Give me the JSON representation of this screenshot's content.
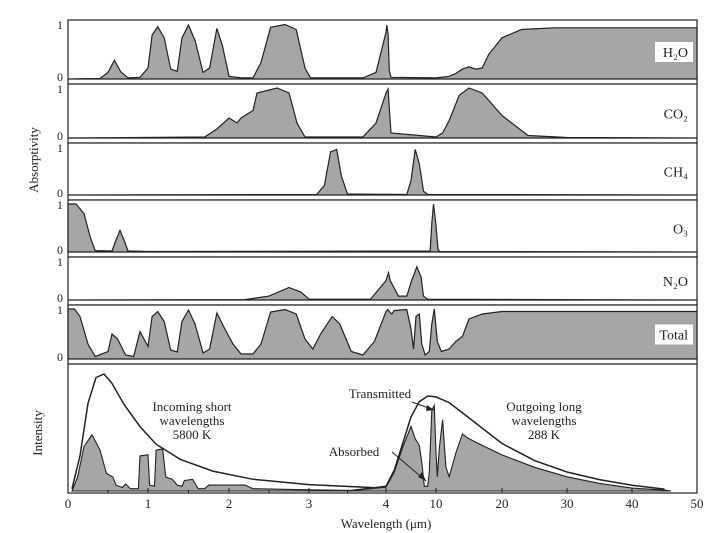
{
  "chart_data": {
    "type": "area",
    "xlabel": "Wavelength (μm)",
    "x_ticks": [
      "0",
      "1",
      "2",
      "3",
      "4",
      "10",
      "20",
      "30",
      "40",
      "50"
    ],
    "absorptivity_label": "Absorptivity",
    "intensity_label": "Intensity",
    "y_ticks": [
      "0",
      "1"
    ],
    "fill_color": "#a6a6a6",
    "grid": false,
    "panels": [
      {
        "name": "H₂O",
        "points": [
          [
            0,
            0
          ],
          [
            0.4,
            0.01
          ],
          [
            0.5,
            0.12
          ],
          [
            0.58,
            0.34
          ],
          [
            0.66,
            0.13
          ],
          [
            0.75,
            0.02
          ],
          [
            0.9,
            0.03
          ],
          [
            1.0,
            0.2
          ],
          [
            1.05,
            0.8
          ],
          [
            1.12,
            0.95
          ],
          [
            1.2,
            0.75
          ],
          [
            1.28,
            0.18
          ],
          [
            1.36,
            0.14
          ],
          [
            1.42,
            0.75
          ],
          [
            1.5,
            0.98
          ],
          [
            1.58,
            0.7
          ],
          [
            1.68,
            0.12
          ],
          [
            1.76,
            0.2
          ],
          [
            1.85,
            0.92
          ],
          [
            1.92,
            0.6
          ],
          [
            2.0,
            0.05
          ],
          [
            2.15,
            0.02
          ],
          [
            2.3,
            0.02
          ],
          [
            2.4,
            0.3
          ],
          [
            2.52,
            0.94
          ],
          [
            2.7,
            0.99
          ],
          [
            2.84,
            0.9
          ],
          [
            2.95,
            0.2
          ],
          [
            3.02,
            0.02
          ],
          [
            3.7,
            0.02
          ],
          [
            3.87,
            0.12
          ],
          [
            4.0,
            0.85
          ],
          [
            4.1,
            0.98
          ],
          [
            4.25,
            0.82
          ],
          [
            4.4,
            0.15
          ],
          [
            4.6,
            0.03
          ],
          [
            10,
            0.02
          ],
          [
            12,
            0.05
          ],
          [
            13,
            0.1
          ],
          [
            14,
            0.18
          ],
          [
            15,
            0.22
          ],
          [
            16,
            0.18
          ],
          [
            17,
            0.2
          ],
          [
            18,
            0.45
          ],
          [
            20,
            0.75
          ],
          [
            23,
            0.9
          ],
          [
            28,
            0.93
          ],
          [
            50,
            0.93
          ]
        ]
      },
      {
        "name": "CO₂",
        "points": [
          [
            0,
            0
          ],
          [
            1.7,
            0.02
          ],
          [
            1.85,
            0.18
          ],
          [
            2.0,
            0.4
          ],
          [
            2.1,
            0.3
          ],
          [
            2.15,
            0.4
          ],
          [
            2.3,
            0.55
          ],
          [
            2.35,
            0.9
          ],
          [
            2.6,
            1.0
          ],
          [
            2.75,
            0.9
          ],
          [
            2.85,
            0.3
          ],
          [
            2.95,
            0.02
          ],
          [
            3.7,
            0.02
          ],
          [
            3.87,
            0.3
          ],
          [
            4.05,
            0.92
          ],
          [
            4.25,
            0.98
          ],
          [
            4.4,
            0.6
          ],
          [
            4.6,
            0.1
          ],
          [
            10,
            0.02
          ],
          [
            11,
            0.1
          ],
          [
            12,
            0.35
          ],
          [
            13.5,
            0.85
          ],
          [
            15,
            1.0
          ],
          [
            17,
            0.9
          ],
          [
            20,
            0.45
          ],
          [
            24,
            0.05
          ],
          [
            30,
            0.01
          ],
          [
            50,
            0.0
          ]
        ]
      },
      {
        "name": "CH₄",
        "points": [
          [
            0,
            0
          ],
          [
            3.1,
            0.01
          ],
          [
            3.2,
            0.2
          ],
          [
            3.28,
            0.9
          ],
          [
            3.36,
            0.95
          ],
          [
            3.42,
            0.4
          ],
          [
            3.5,
            0.02
          ],
          [
            6.5,
            0.01
          ],
          [
            7,
            0.3
          ],
          [
            7.5,
            0.95
          ],
          [
            8,
            0.65
          ],
          [
            8.5,
            0.08
          ],
          [
            9,
            0.01
          ],
          [
            50,
            0.0
          ]
        ]
      },
      {
        "name": "O₃",
        "points": [
          [
            0,
            1.0
          ],
          [
            0.1,
            1.0
          ],
          [
            0.2,
            0.8
          ],
          [
            0.28,
            0.3
          ],
          [
            0.34,
            0.03
          ],
          [
            0.55,
            0.02
          ],
          [
            0.6,
            0.25
          ],
          [
            0.65,
            0.45
          ],
          [
            0.7,
            0.25
          ],
          [
            0.75,
            0.02
          ],
          [
            1.0,
            0.01
          ],
          [
            9.3,
            0.02
          ],
          [
            9.5,
            0.6
          ],
          [
            9.7,
            1.0
          ],
          [
            10.0,
            0.55
          ],
          [
            10.3,
            0.05
          ],
          [
            10.6,
            0.01
          ],
          [
            50,
            0.0
          ]
        ]
      },
      {
        "name": "N₂O",
        "points": [
          [
            0,
            0
          ],
          [
            2.2,
            0.01
          ],
          [
            2.5,
            0.1
          ],
          [
            2.75,
            0.32
          ],
          [
            2.9,
            0.2
          ],
          [
            3.0,
            0.02
          ],
          [
            3.8,
            0.02
          ],
          [
            4.0,
            0.5
          ],
          [
            4.3,
            0.7
          ],
          [
            4.5,
            0.5
          ],
          [
            5.5,
            0.1
          ],
          [
            6.5,
            0.1
          ],
          [
            7.0,
            0.45
          ],
          [
            7.7,
            0.85
          ],
          [
            8.2,
            0.6
          ],
          [
            8.5,
            0.1
          ],
          [
            9.0,
            0.02
          ],
          [
            50,
            0.0
          ]
        ]
      },
      {
        "name": "Total",
        "points": [
          [
            0,
            1.0
          ],
          [
            0.08,
            1.0
          ],
          [
            0.15,
            0.85
          ],
          [
            0.25,
            0.3
          ],
          [
            0.34,
            0.05
          ],
          [
            0.5,
            0.15
          ],
          [
            0.55,
            0.5
          ],
          [
            0.62,
            0.4
          ],
          [
            0.72,
            0.08
          ],
          [
            0.82,
            0.05
          ],
          [
            0.9,
            0.55
          ],
          [
            1.0,
            0.25
          ],
          [
            1.05,
            0.85
          ],
          [
            1.12,
            0.95
          ],
          [
            1.2,
            0.75
          ],
          [
            1.28,
            0.18
          ],
          [
            1.36,
            0.14
          ],
          [
            1.42,
            0.75
          ],
          [
            1.5,
            0.98
          ],
          [
            1.58,
            0.7
          ],
          [
            1.68,
            0.12
          ],
          [
            1.76,
            0.2
          ],
          [
            1.85,
            0.92
          ],
          [
            1.95,
            0.6
          ],
          [
            2.05,
            0.3
          ],
          [
            2.15,
            0.1
          ],
          [
            2.3,
            0.1
          ],
          [
            2.4,
            0.3
          ],
          [
            2.52,
            0.94
          ],
          [
            2.7,
            0.99
          ],
          [
            2.84,
            0.9
          ],
          [
            2.95,
            0.4
          ],
          [
            3.05,
            0.2
          ],
          [
            3.15,
            0.5
          ],
          [
            3.3,
            0.85
          ],
          [
            3.4,
            0.7
          ],
          [
            3.55,
            0.15
          ],
          [
            3.7,
            0.08
          ],
          [
            3.85,
            0.35
          ],
          [
            4.0,
            0.95
          ],
          [
            4.2,
            0.99
          ],
          [
            4.4,
            0.95
          ],
          [
            4.7,
            0.9
          ],
          [
            5.0,
            0.97
          ],
          [
            6.5,
            0.99
          ],
          [
            7.0,
            0.6
          ],
          [
            7.3,
            0.2
          ],
          [
            7.6,
            0.85
          ],
          [
            8.0,
            0.9
          ],
          [
            8.3,
            0.3
          ],
          [
            8.7,
            0.08
          ],
          [
            9.2,
            0.15
          ],
          [
            9.5,
            0.7
          ],
          [
            9.8,
            1.0
          ],
          [
            10.2,
            0.35
          ],
          [
            10.8,
            0.15
          ],
          [
            12,
            0.2
          ],
          [
            13,
            0.35
          ],
          [
            14,
            0.45
          ],
          [
            15,
            0.8
          ],
          [
            17,
            0.9
          ],
          [
            20,
            0.95
          ],
          [
            50,
            0.95
          ]
        ]
      }
    ],
    "blackbody_sun": [
      [
        0.05,
        0.02
      ],
      [
        0.15,
        0.3
      ],
      [
        0.25,
        0.75
      ],
      [
        0.35,
        0.97
      ],
      [
        0.45,
        1.0
      ],
      [
        0.55,
        0.92
      ],
      [
        0.7,
        0.74
      ],
      [
        0.9,
        0.55
      ],
      [
        1.1,
        0.4
      ],
      [
        1.4,
        0.27
      ],
      [
        1.8,
        0.17
      ],
      [
        2.3,
        0.1
      ],
      [
        3.0,
        0.055
      ],
      [
        3.8,
        0.03
      ],
      [
        4.0,
        0.02
      ]
    ],
    "incoming_fill": [
      [
        0.05,
        0
      ],
      [
        0.12,
        0.12
      ],
      [
        0.2,
        0.38
      ],
      [
        0.3,
        0.48
      ],
      [
        0.4,
        0.35
      ],
      [
        0.48,
        0.15
      ],
      [
        0.56,
        0.12
      ],
      [
        0.6,
        0.05
      ],
      [
        0.68,
        0.03
      ],
      [
        0.72,
        0.06
      ],
      [
        0.78,
        0.02
      ],
      [
        0.88,
        0.02
      ],
      [
        0.9,
        0.3
      ],
      [
        1.0,
        0.31
      ],
      [
        1.02,
        0.05
      ],
      [
        1.08,
        0.04
      ],
      [
        1.1,
        0.35
      ],
      [
        1.18,
        0.36
      ],
      [
        1.22,
        0.12
      ],
      [
        1.3,
        0.1
      ],
      [
        1.36,
        0.05
      ],
      [
        1.42,
        0.04
      ],
      [
        1.45,
        0.09
      ],
      [
        1.55,
        0.1
      ],
      [
        1.62,
        0.02
      ],
      [
        1.7,
        0.02
      ],
      [
        1.75,
        0.05
      ],
      [
        2.2,
        0.05
      ],
      [
        2.3,
        0.02
      ],
      [
        3.0,
        0.01
      ],
      [
        4.0,
        0.0
      ]
    ],
    "blackbody_earth": [
      [
        3.5,
        0.0
      ],
      [
        4.0,
        0.05
      ],
      [
        5.0,
        0.22
      ],
      [
        6.0,
        0.5
      ],
      [
        7.0,
        0.78
      ],
      [
        8.0,
        0.94
      ],
      [
        9.0,
        1.0
      ],
      [
        10.0,
        0.99
      ],
      [
        12.0,
        0.93
      ],
      [
        15.0,
        0.77
      ],
      [
        20.0,
        0.5
      ],
      [
        25.0,
        0.32
      ],
      [
        30.0,
        0.2
      ],
      [
        35.0,
        0.12
      ],
      [
        40.0,
        0.06
      ],
      [
        45.0,
        0.02
      ]
    ],
    "outgoing_fill": [
      [
        3.5,
        0
      ],
      [
        4.0,
        0.04
      ],
      [
        5.0,
        0.2
      ],
      [
        6.0,
        0.46
      ],
      [
        7.0,
        0.68
      ],
      [
        7.5,
        0.55
      ],
      [
        8.0,
        0.48
      ],
      [
        8.3,
        0.3
      ],
      [
        8.6,
        0.05
      ],
      [
        9.0,
        0.05
      ],
      [
        9.2,
        0.2
      ],
      [
        9.5,
        0.85
      ],
      [
        9.8,
        0.9
      ],
      [
        10.0,
        0.4
      ],
      [
        10.2,
        0.15
      ],
      [
        10.5,
        0.45
      ],
      [
        11.0,
        0.75
      ],
      [
        11.5,
        0.25
      ],
      [
        12.0,
        0.15
      ],
      [
        13.0,
        0.4
      ],
      [
        14.0,
        0.6
      ],
      [
        15.0,
        0.55
      ],
      [
        17.0,
        0.48
      ],
      [
        20.0,
        0.38
      ],
      [
        25.0,
        0.25
      ],
      [
        30.0,
        0.15
      ],
      [
        35.0,
        0.08
      ],
      [
        40.0,
        0.03
      ],
      [
        45.0,
        0.01
      ],
      [
        46,
        0
      ]
    ],
    "annotations": {
      "incoming_1": "Incoming short",
      "incoming_2": "wavelengths",
      "incoming_3": "5800 K",
      "outgoing_1": "Outgoing long",
      "outgoing_2": "wavelengths",
      "outgoing_3": "288 K",
      "transmitted": "Transmitted",
      "absorbed": "Absorbed"
    }
  }
}
